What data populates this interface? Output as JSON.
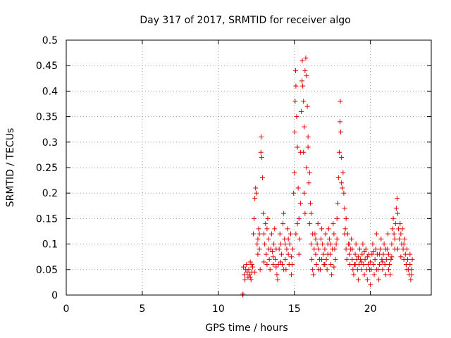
{
  "chart_data": {
    "type": "scatter",
    "title": "Day 317 of 2017, SRMTID for receiver algo",
    "xlabel": "GPS time / hours",
    "ylabel": "SRMTID / TECUs",
    "xlim": [
      0,
      24
    ],
    "ylim": [
      0,
      0.5
    ],
    "xticks": [
      0,
      5,
      10,
      15,
      20
    ],
    "xtick_labels": [
      "0",
      "5",
      "10",
      "15",
      "20"
    ],
    "yticks": [
      0,
      0.05,
      0.1,
      0.15,
      0.2,
      0.25,
      0.3,
      0.35,
      0.4,
      0.45,
      0.5
    ],
    "ytick_labels": [
      "0",
      "0.05",
      "0.1",
      "0.15",
      "0.2",
      "0.25",
      "0.3",
      "0.35",
      "0.4",
      "0.45",
      "0.5"
    ],
    "grid": true,
    "marker": "plus",
    "series": [
      {
        "name": "SRMTID",
        "color": "#e00000",
        "points": [
          [
            11.6,
            0.0
          ],
          [
            11.62,
            0.002
          ],
          [
            11.65,
            0.055
          ],
          [
            11.7,
            0.04
          ],
          [
            11.75,
            0.03
          ],
          [
            11.8,
            0.05
          ],
          [
            11.85,
            0.06
          ],
          [
            11.9,
            0.045
          ],
          [
            11.95,
            0.035
          ],
          [
            12.0,
            0.05
          ],
          [
            12.05,
            0.04
          ],
          [
            12.1,
            0.065
          ],
          [
            12.15,
            0.03
          ],
          [
            12.2,
            0.045
          ],
          [
            12.25,
            0.055
          ],
          [
            12.3,
            0.12
          ],
          [
            12.35,
            0.15
          ],
          [
            12.4,
            0.19
          ],
          [
            12.45,
            0.21
          ],
          [
            12.5,
            0.2
          ],
          [
            12.55,
            0.1
          ],
          [
            12.6,
            0.08
          ],
          [
            12.65,
            0.13
          ],
          [
            12.7,
            0.09
          ],
          [
            12.75,
            0.05
          ],
          [
            12.8,
            0.28
          ],
          [
            12.82,
            0.31
          ],
          [
            12.85,
            0.27
          ],
          [
            12.9,
            0.23
          ],
          [
            12.95,
            0.16
          ],
          [
            13.0,
            0.12
          ],
          [
            13.05,
            0.1
          ],
          [
            13.1,
            0.14
          ],
          [
            13.15,
            0.08
          ],
          [
            13.2,
            0.06
          ],
          [
            13.25,
            0.15
          ],
          [
            13.3,
            0.11
          ],
          [
            13.35,
            0.07
          ],
          [
            13.4,
            0.05
          ],
          [
            13.45,
            0.09
          ],
          [
            13.5,
            0.12
          ],
          [
            13.55,
            0.085
          ],
          [
            13.6,
            0.06
          ],
          [
            13.65,
            0.1
          ],
          [
            13.7,
            0.13
          ],
          [
            13.75,
            0.07
          ],
          [
            13.8,
            0.055
          ],
          [
            13.85,
            0.04
          ],
          [
            13.9,
            0.03
          ],
          [
            13.95,
            0.06
          ],
          [
            14.0,
            0.09
          ],
          [
            14.05,
            0.12
          ],
          [
            14.1,
            0.1
          ],
          [
            14.15,
            0.08
          ],
          [
            14.2,
            0.06
          ],
          [
            14.25,
            0.14
          ],
          [
            14.3,
            0.16
          ],
          [
            14.35,
            0.11
          ],
          [
            14.4,
            0.07
          ],
          [
            14.45,
            0.05
          ],
          [
            14.5,
            0.09
          ],
          [
            14.55,
            0.13
          ],
          [
            14.6,
            0.08
          ],
          [
            14.65,
            0.06
          ],
          [
            14.7,
            0.1
          ],
          [
            14.75,
            0.12
          ],
          [
            14.8,
            0.04
          ],
          [
            14.85,
            0.06
          ],
          [
            14.9,
            0.09
          ],
          [
            14.95,
            0.2
          ],
          [
            15.0,
            0.24
          ],
          [
            15.02,
            0.32
          ],
          [
            15.05,
            0.38
          ],
          [
            15.08,
            0.44
          ],
          [
            15.1,
            0.41
          ],
          [
            15.15,
            0.35
          ],
          [
            15.2,
            0.29
          ],
          [
            15.25,
            0.21
          ],
          [
            15.3,
            0.15
          ],
          [
            15.35,
            0.11
          ],
          [
            15.4,
            0.28
          ],
          [
            15.45,
            0.36
          ],
          [
            15.5,
            0.42
          ],
          [
            15.52,
            0.46
          ],
          [
            15.55,
            0.41
          ],
          [
            15.6,
            0.38
          ],
          [
            15.65,
            0.33
          ],
          [
            15.7,
            0.44
          ],
          [
            15.75,
            0.465
          ],
          [
            15.8,
            0.43
          ],
          [
            15.85,
            0.37
          ],
          [
            15.9,
            0.29
          ],
          [
            15.95,
            0.22
          ],
          [
            16.0,
            0.24
          ],
          [
            16.05,
            0.18
          ],
          [
            16.1,
            0.1
          ],
          [
            16.15,
            0.07
          ],
          [
            16.2,
            0.05
          ],
          [
            16.25,
            0.04
          ],
          [
            16.3,
            0.09
          ],
          [
            16.35,
            0.12
          ],
          [
            16.4,
            0.08
          ],
          [
            16.45,
            0.06
          ],
          [
            16.5,
            0.1
          ],
          [
            16.55,
            0.14
          ],
          [
            16.6,
            0.09
          ],
          [
            16.65,
            0.07
          ],
          [
            16.7,
            0.05
          ],
          [
            16.75,
            0.11
          ],
          [
            16.8,
            0.13
          ],
          [
            16.85,
            0.1
          ],
          [
            16.9,
            0.08
          ],
          [
            16.95,
            0.06
          ],
          [
            17.0,
            0.09
          ],
          [
            17.05,
            0.12
          ],
          [
            17.1,
            0.07
          ],
          [
            17.15,
            0.05
          ],
          [
            17.2,
            0.1
          ],
          [
            17.25,
            0.13
          ],
          [
            17.3,
            0.11
          ],
          [
            17.35,
            0.08
          ],
          [
            17.4,
            0.06
          ],
          [
            17.45,
            0.04
          ],
          [
            17.5,
            0.09
          ],
          [
            17.55,
            0.14
          ],
          [
            17.6,
            0.12
          ],
          [
            17.65,
            0.09
          ],
          [
            17.7,
            0.07
          ],
          [
            17.75,
            0.1
          ],
          [
            17.8,
            0.15
          ],
          [
            17.85,
            0.18
          ],
          [
            17.9,
            0.23
          ],
          [
            17.95,
            0.28
          ],
          [
            18.0,
            0.34
          ],
          [
            18.02,
            0.38
          ],
          [
            18.05,
            0.32
          ],
          [
            18.1,
            0.27
          ],
          [
            18.15,
            0.21
          ],
          [
            18.2,
            0.24
          ],
          [
            18.25,
            0.2
          ],
          [
            18.3,
            0.17
          ],
          [
            18.35,
            0.13
          ],
          [
            18.4,
            0.09
          ],
          [
            18.45,
            0.07
          ],
          [
            18.5,
            0.12
          ],
          [
            18.55,
            0.1
          ],
          [
            18.6,
            0.08
          ],
          [
            18.65,
            0.06
          ],
          [
            18.7,
            0.09
          ],
          [
            18.75,
            0.11
          ],
          [
            18.8,
            0.07
          ],
          [
            18.85,
            0.05
          ],
          [
            18.9,
            0.04
          ],
          [
            18.95,
            0.06
          ],
          [
            19.0,
            0.08
          ],
          [
            19.05,
            0.1
          ],
          [
            19.1,
            0.07
          ],
          [
            19.15,
            0.05
          ],
          [
            19.2,
            0.03
          ],
          [
            19.25,
            0.06
          ],
          [
            19.3,
            0.09
          ],
          [
            19.35,
            0.07
          ],
          [
            19.4,
            0.05
          ],
          [
            19.45,
            0.08
          ],
          [
            19.5,
            0.1
          ],
          [
            19.55,
            0.06
          ],
          [
            19.6,
            0.04
          ],
          [
            19.65,
            0.07
          ],
          [
            19.7,
            0.09
          ],
          [
            19.75,
            0.05
          ],
          [
            19.8,
            0.03
          ],
          [
            19.85,
            0.06
          ],
          [
            19.9,
            0.08
          ],
          [
            19.95,
            0.05
          ],
          [
            20.0,
            0.02
          ],
          [
            20.05,
            0.05
          ],
          [
            20.1,
            0.08
          ],
          [
            20.15,
            0.1
          ],
          [
            20.2,
            0.06
          ],
          [
            20.25,
            0.04
          ],
          [
            20.3,
            0.07
          ],
          [
            20.35,
            0.09
          ],
          [
            20.4,
            0.12
          ],
          [
            20.45,
            0.08
          ],
          [
            20.5,
            0.05
          ],
          [
            20.55,
            0.03
          ],
          [
            20.6,
            0.06
          ],
          [
            20.65,
            0.09
          ],
          [
            20.7,
            0.11
          ],
          [
            20.75,
            0.07
          ],
          [
            20.8,
            0.05
          ],
          [
            20.85,
            0.08
          ],
          [
            20.9,
            0.1
          ],
          [
            20.95,
            0.06
          ],
          [
            21.0,
            0.04
          ],
          [
            21.05,
            0.07
          ],
          [
            21.1,
            0.09
          ],
          [
            21.15,
            0.12
          ],
          [
            21.2,
            0.08
          ],
          [
            21.25,
            0.06
          ],
          [
            21.3,
            0.04
          ],
          [
            21.35,
            0.07
          ],
          [
            21.4,
            0.1
          ],
          [
            21.45,
            0.13
          ],
          [
            21.5,
            0.15
          ],
          [
            21.55,
            0.12
          ],
          [
            21.6,
            0.09
          ],
          [
            21.65,
            0.14
          ],
          [
            21.7,
            0.17
          ],
          [
            21.75,
            0.19
          ],
          [
            21.8,
            0.16
          ],
          [
            21.85,
            0.13
          ],
          [
            21.9,
            0.11
          ],
          [
            21.95,
            0.14
          ],
          [
            22.0,
            0.12
          ],
          [
            22.05,
            0.1
          ],
          [
            22.1,
            0.13
          ],
          [
            22.15,
            0.09
          ],
          [
            22.2,
            0.07
          ],
          [
            22.25,
            0.11
          ],
          [
            22.3,
            0.08
          ],
          [
            22.35,
            0.06
          ],
          [
            22.4,
            0.09
          ],
          [
            22.45,
            0.07
          ],
          [
            22.5,
            0.05
          ],
          [
            22.55,
            0.04
          ],
          [
            22.6,
            0.06
          ],
          [
            22.65,
            0.03
          ],
          [
            22.7,
            0.05
          ],
          [
            22.75,
            0.07
          ],
          [
            12.1,
            0.035
          ],
          [
            12.2,
            0.06
          ],
          [
            12.4,
            0.045
          ],
          [
            12.6,
            0.11
          ],
          [
            12.7,
            0.12
          ],
          [
            13.0,
            0.065
          ],
          [
            13.2,
            0.13
          ],
          [
            13.3,
            0.09
          ],
          [
            13.6,
            0.075
          ],
          [
            13.8,
            0.09
          ],
          [
            14.1,
            0.065
          ],
          [
            14.3,
            0.05
          ],
          [
            14.4,
            0.1
          ],
          [
            14.6,
            0.11
          ],
          [
            14.8,
            0.075
          ],
          [
            15.1,
            0.12
          ],
          [
            15.2,
            0.14
          ],
          [
            15.3,
            0.08
          ],
          [
            15.6,
            0.28
          ],
          [
            15.65,
            0.2
          ],
          [
            15.7,
            0.16
          ],
          [
            15.8,
            0.25
          ],
          [
            16.0,
            0.14
          ],
          [
            16.1,
            0.16
          ],
          [
            16.2,
            0.12
          ],
          [
            16.4,
            0.11
          ],
          [
            16.6,
            0.05
          ],
          [
            16.8,
            0.07
          ],
          [
            17.0,
            0.06
          ],
          [
            17.2,
            0.08
          ],
          [
            17.4,
            0.1
          ],
          [
            17.6,
            0.055
          ],
          [
            17.8,
            0.11
          ],
          [
            18.1,
            0.22
          ],
          [
            18.3,
            0.12
          ],
          [
            18.4,
            0.15
          ],
          [
            18.6,
            0.1
          ],
          [
            18.8,
            0.09
          ],
          [
            19.0,
            0.06
          ],
          [
            19.2,
            0.075
          ],
          [
            19.4,
            0.065
          ],
          [
            19.6,
            0.085
          ],
          [
            19.8,
            0.075
          ],
          [
            20.0,
            0.065
          ],
          [
            20.2,
            0.085
          ],
          [
            20.4,
            0.05
          ],
          [
            20.6,
            0.08
          ],
          [
            20.8,
            0.065
          ],
          [
            21.0,
            0.09
          ],
          [
            21.2,
            0.05
          ],
          [
            21.4,
            0.075
          ],
          [
            21.6,
            0.11
          ],
          [
            21.8,
            0.09
          ],
          [
            22.0,
            0.075
          ],
          [
            22.2,
            0.1
          ],
          [
            22.4,
            0.05
          ],
          [
            22.6,
            0.08
          ],
          [
            22.7,
            0.04
          ],
          [
            15.4,
            0.18
          ],
          [
            15.9,
            0.31
          ]
        ]
      }
    ]
  }
}
